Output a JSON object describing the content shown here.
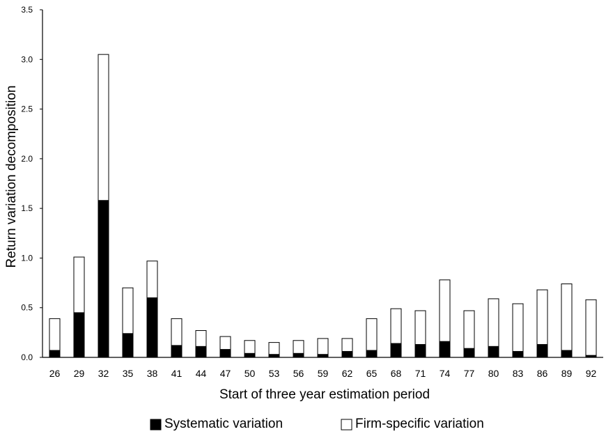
{
  "chart_data": {
    "type": "bar",
    "stacked": true,
    "categories": [
      "26",
      "29",
      "32",
      "35",
      "38",
      "41",
      "44",
      "47",
      "50",
      "53",
      "56",
      "59",
      "62",
      "65",
      "68",
      "71",
      "74",
      "77",
      "80",
      "83",
      "86",
      "89",
      "92"
    ],
    "series": [
      {
        "name": "Systematic variation",
        "color": "#000000",
        "values": [
          0.07,
          0.45,
          1.58,
          0.24,
          0.6,
          0.12,
          0.11,
          0.08,
          0.04,
          0.03,
          0.04,
          0.03,
          0.06,
          0.07,
          0.14,
          0.13,
          0.16,
          0.09,
          0.11,
          0.06,
          0.13,
          0.07,
          0.02
        ]
      },
      {
        "name": "Firm-specific variation",
        "color": "#ffffff",
        "values": [
          0.32,
          0.56,
          1.47,
          0.46,
          0.37,
          0.27,
          0.16,
          0.13,
          0.13,
          0.12,
          0.13,
          0.16,
          0.13,
          0.32,
          0.35,
          0.34,
          0.62,
          0.38,
          0.48,
          0.48,
          0.55,
          0.67,
          0.56
        ]
      }
    ],
    "ylabel": "Return variation decomposition",
    "xlabel": "Start of three year estimation period",
    "ylim": [
      0,
      3.5
    ],
    "yticks": [
      "0.0",
      "0.5",
      "1.0",
      "1.5",
      "2.0",
      "2.5",
      "3.0",
      "3.5"
    ],
    "grid": false,
    "legend_position": "bottom"
  }
}
